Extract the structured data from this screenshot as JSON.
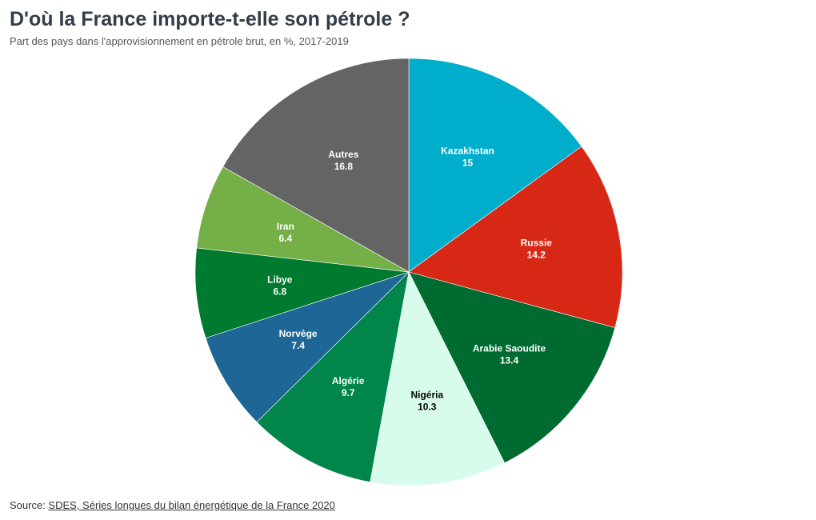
{
  "title": "D'où la France importe-t-elle son pétrole ?",
  "subtitle": "Part des pays dans l'approvisionnement en pétrole brut, en %, 2017-2019",
  "source": {
    "prefix": "Source: ",
    "link_text": "SDES, Séries longues du bilan énergétique de la France 2020"
  },
  "chart_data": {
    "type": "pie",
    "title": "D'où la France importe-t-elle son pétrole ?",
    "subtitle": "Part des pays dans l'approvisionnement en pétrole brut, en %, 2017-2019",
    "unit": "%",
    "start": "12 o'clock",
    "direction": "clockwise",
    "slices": [
      {
        "label": "Kazakhstan",
        "value": 15,
        "color": "#00aecb",
        "text_color": "#ffffff"
      },
      {
        "label": "Russie",
        "value": 14.2,
        "color": "#d72816",
        "text_color": "#ffffff"
      },
      {
        "label": "Arabie Saoudite",
        "value": 13.4,
        "color": "#006b31",
        "text_color": "#ffffff"
      },
      {
        "label": "Nigéria",
        "value": 10.3,
        "color": "#d8fcec",
        "text_color": "#000000"
      },
      {
        "label": "Algérie",
        "value": 9.7,
        "color": "#00854a",
        "text_color": "#ffffff"
      },
      {
        "label": "Norvège",
        "value": 7.4,
        "color": "#1d6696",
        "text_color": "#ffffff"
      },
      {
        "label": "Libye",
        "value": 6.8,
        "color": "#007a2f",
        "text_color": "#ffffff"
      },
      {
        "label": "Iran",
        "value": 6.4,
        "color": "#75af48",
        "text_color": "#ffffff"
      },
      {
        "label": "Autres",
        "value": 16.8,
        "color": "#646464",
        "text_color": "#ffffff"
      }
    ]
  }
}
